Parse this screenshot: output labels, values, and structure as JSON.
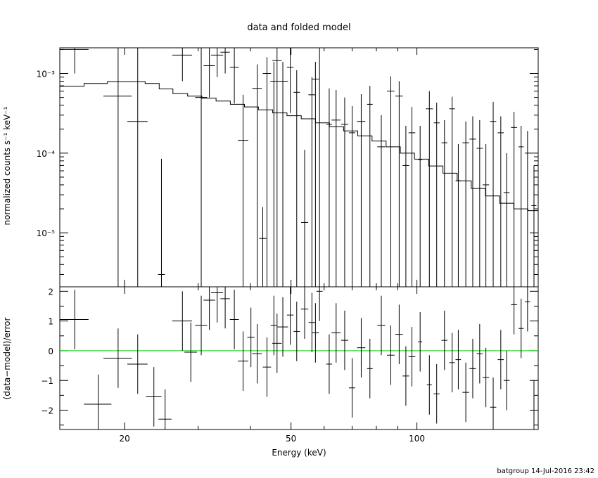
{
  "title": "data and folded model",
  "footer": "batgroup 14-Jul-2016 23:42",
  "chart_data": [
    {
      "panel": "top",
      "type": "scatter",
      "title": "data and folded model",
      "xlabel": "Energy (keV)",
      "ylabel": "normalized counts s⁻¹ keV⁻¹",
      "xscale": "log",
      "yscale": "log",
      "xlim": [
        14,
        195
      ],
      "ylim": [
        2.1e-06,
        0.0021
      ],
      "y_tick_labels": [
        "10⁻⁵",
        "10⁻⁴",
        "10⁻³"
      ],
      "y_tick_values": [
        1e-05,
        0.0001,
        0.001
      ],
      "grid": false,
      "data": {
        "x": [
          15.2,
          19.3,
          21.5,
          24.5,
          27.5,
          30.5,
          31.9,
          33.3,
          34.8,
          36.6,
          38.4,
          41.5,
          42.8,
          43.8,
          45.5,
          46.3,
          47.8,
          49.8,
          51.6,
          53.9,
          56.1,
          57.2,
          58.5,
          61.7,
          64.1,
          67.2,
          70.0,
          73.6,
          77.2,
          82.2,
          86.6,
          90.7,
          94.1,
          97.3,
          101.8,
          107.1,
          111.5,
          116.4,
          121.4,
          125.6,
          130.9,
          136.0,
          141.3,
          146.2,
          152.2,
          158.7,
          163.9,
          170.7,
          177.5,
          183.9,
          190.5
        ],
        "xerr": [
          1.2,
          1.5,
          1.2,
          0,
          1.5,
          1.0,
          1.0,
          1.1,
          0.9,
          0.9,
          1.1,
          1.1,
          0,
          1.0,
          0,
          1.2,
          1.4,
          0.9,
          0.9,
          0,
          0,
          1.1,
          1.0,
          1.0,
          1.6,
          1.3,
          1.2,
          1.7,
          1.2,
          1.8,
          1.8,
          1.9,
          1.7,
          1.8,
          1.2,
          0,
          1.8,
          1.9,
          1.9,
          1.9,
          2.4,
          2.4,
          2.4,
          2.6,
          2.6,
          2.7,
          2.7,
          2.8,
          2.5,
          2.7,
          2.6
        ],
        "y": [
          0.002,
          0.00052,
          0.00025,
          3e-06,
          0.0017,
          0.0005,
          0.00125,
          0.0017,
          0.00185,
          0.0012,
          0.000145,
          0.00065,
          8.5e-06,
          0.001,
          0.0008,
          0.00145,
          0.0008,
          0.0012,
          0.00058,
          1.35e-05,
          0.00054,
          0.00085,
          0.0023,
          0.00023,
          0.00026,
          0.00023,
          0.00018,
          0.00025,
          0.00041,
          0.00012,
          0.0006,
          0.00052,
          7e-05,
          0.00018,
          8.3e-05,
          0.00036,
          0.00024,
          0.000135,
          0.00036,
          4.5e-05,
          0.000135,
          0.00015,
          0.000115,
          4e-05,
          0.00025,
          0.00018,
          3.2e-05,
          0.00021,
          0.00012,
          0.0001,
          2.2e-05
        ],
        "ylo": [
          0.001,
          2.1e-06,
          2.1e-06,
          2.1e-06,
          0.0008,
          2.1e-06,
          0.0005,
          0.0009,
          0.001,
          0.00042,
          2.1e-06,
          2.1e-06,
          2.1e-06,
          2.1e-06,
          2.1e-06,
          2.1e-06,
          2.1e-06,
          0.00032,
          2.1e-06,
          2.1e-06,
          2.1e-06,
          2.1e-06,
          2.1e-06,
          2.1e-06,
          2.1e-06,
          2.1e-06,
          2.1e-06,
          2.1e-06,
          2.1e-06,
          2.1e-06,
          2.1e-06,
          2.1e-06,
          2.1e-06,
          2.1e-06,
          2.1e-06,
          2.1e-06,
          2.1e-06,
          2.1e-06,
          2.1e-06,
          2.1e-06,
          2.1e-06,
          2.1e-06,
          2.1e-06,
          2.1e-06,
          2.1e-06,
          2.1e-06,
          2.1e-06,
          2.1e-06,
          2.1e-06,
          2.1e-06,
          2.1e-06
        ],
        "yhi": [
          0.0021,
          0.0021,
          0.0021,
          8.5e-05,
          0.0021,
          0.0021,
          0.0021,
          0.0021,
          0.0021,
          0.0021,
          0.00054,
          0.0013,
          2.1e-05,
          0.0016,
          0.0014,
          0.0021,
          0.0014,
          0.0021,
          0.0011,
          0.00011,
          0.0009,
          0.0014,
          0.0021,
          0.00065,
          0.00062,
          0.0005,
          0.00039,
          0.00055,
          0.0007,
          0.0003,
          0.00092,
          0.0008,
          0.00022,
          0.00038,
          0.00022,
          0.0006,
          0.00043,
          0.00026,
          0.00051,
          0.00013,
          0.00025,
          0.00029,
          0.00026,
          0.00013,
          0.00044,
          0.00029,
          0.0001,
          0.00033,
          0.00022,
          0.00019,
          7e-05
        ]
      },
      "model": {
        "x": [
          14.0,
          16.0,
          18.2,
          22.4,
          24.2,
          26.1,
          28.3,
          30.6,
          33.1,
          35.8,
          38.7,
          41.8,
          45.2,
          48.9,
          52.9,
          57.2,
          61.8,
          66.8,
          72.2,
          78.1,
          84.4,
          91.3,
          98.7,
          106.7,
          115.4,
          124.8,
          134.9,
          145.9,
          157.7,
          170.5,
          184.3,
          195.0
        ],
        "y": [
          0.00069,
          0.00075,
          0.00079,
          0.00075,
          0.00064,
          0.00056,
          0.00052,
          0.00049,
          0.00045,
          0.00041,
          0.00038,
          0.00035,
          0.00032,
          0.000295,
          0.00027,
          0.00024,
          0.000215,
          0.00019,
          0.000165,
          0.000142,
          0.00012,
          0.0001,
          8.4e-05,
          6.9e-05,
          5.6e-05,
          4.5e-05,
          3.6e-05,
          2.9e-05,
          2.35e-05,
          2e-05,
          1.9e-05,
          1.9e-05
        ]
      }
    },
    {
      "panel": "bottom",
      "type": "scatter",
      "xlabel": "Energy (keV)",
      "ylabel": "(data−model)/error",
      "xscale": "log",
      "xlim": [
        14,
        195
      ],
      "ylim": [
        -2.65,
        2.15
      ],
      "x_tick_labels": [
        "20",
        "50",
        "100"
      ],
      "x_tick_values": [
        20,
        50,
        100
      ],
      "y_tick_labels": [
        "−2",
        "−1",
        "0",
        "1",
        "2"
      ],
      "y_tick_values": [
        -2,
        -1,
        0,
        1,
        2
      ],
      "zero_line": 0,
      "zero_line_color": "#00cc00",
      "grid": false,
      "data": {
        "x": [
          15.2,
          17.3,
          19.3,
          21.5,
          23.5,
          25.0,
          27.5,
          28.8,
          30.5,
          31.9,
          33.3,
          34.8,
          36.6,
          38.4,
          40.1,
          41.5,
          43.8,
          45.5,
          46.3,
          47.8,
          49.8,
          51.6,
          53.9,
          56.1,
          57.2,
          58.5,
          61.7,
          64.1,
          67.2,
          70.0,
          73.6,
          77.2,
          82.2,
          86.6,
          90.7,
          94.1,
          97.3,
          101.8,
          107.1,
          111.5,
          116.4,
          121.4,
          125.6,
          130.9,
          136.0,
          141.3,
          146.2,
          152.2,
          158.7,
          163.9,
          170.7,
          177.5,
          183.9,
          190.5
        ],
        "xerr": [
          1.2,
          1.3,
          1.5,
          1.2,
          1.0,
          0.9,
          1.5,
          1.0,
          1.0,
          1.0,
          1.1,
          0.9,
          0.9,
          1.1,
          0.8,
          1.1,
          1.0,
          0.8,
          1.2,
          1.4,
          0.9,
          0.9,
          1.1,
          1.0,
          1.1,
          1.0,
          1.0,
          1.6,
          1.3,
          1.2,
          1.7,
          1.2,
          1.8,
          1.8,
          1.9,
          1.7,
          1.8,
          1.2,
          1.5,
          1.8,
          1.9,
          1.9,
          1.9,
          2.4,
          2.4,
          2.4,
          2.6,
          2.6,
          2.7,
          2.7,
          2.8,
          2.5,
          2.7,
          2.6
        ],
        "y": [
          1.05,
          -1.8,
          -0.25,
          -0.45,
          -1.55,
          -2.3,
          1.0,
          -0.05,
          0.85,
          1.7,
          1.95,
          1.75,
          1.05,
          -0.35,
          0.45,
          -0.1,
          -0.55,
          0.85,
          0.25,
          0.8,
          1.2,
          0.65,
          1.4,
          0.95,
          0.6,
          2.0,
          -0.45,
          0.6,
          0.35,
          -1.25,
          0.1,
          -0.6,
          0.85,
          -0.15,
          0.55,
          -0.85,
          -0.2,
          0.3,
          -1.15,
          -1.45,
          0.35,
          -0.4,
          -0.3,
          -1.4,
          -0.6,
          -0.1,
          -0.9,
          -1.9,
          -0.3,
          -1.0,
          1.55,
          0.75,
          1.65,
          -2.0
        ],
        "yerr": [
          1.0,
          1.0,
          1.0,
          1.0,
          1.0,
          1.0,
          1.0,
          1.0,
          1.0,
          1.0,
          1.0,
          1.0,
          1.0,
          1.0,
          1.0,
          1.0,
          1.0,
          1.0,
          1.0,
          1.0,
          1.0,
          1.0,
          1.0,
          1.0,
          1.0,
          1.0,
          1.0,
          1.0,
          1.0,
          1.0,
          1.0,
          1.0,
          1.0,
          1.0,
          1.0,
          1.0,
          1.0,
          1.0,
          1.0,
          1.0,
          1.0,
          1.0,
          1.0,
          1.0,
          1.0,
          1.0,
          1.0,
          1.0,
          1.0,
          1.0,
          1.0,
          1.0,
          1.0,
          1.0
        ]
      }
    }
  ]
}
